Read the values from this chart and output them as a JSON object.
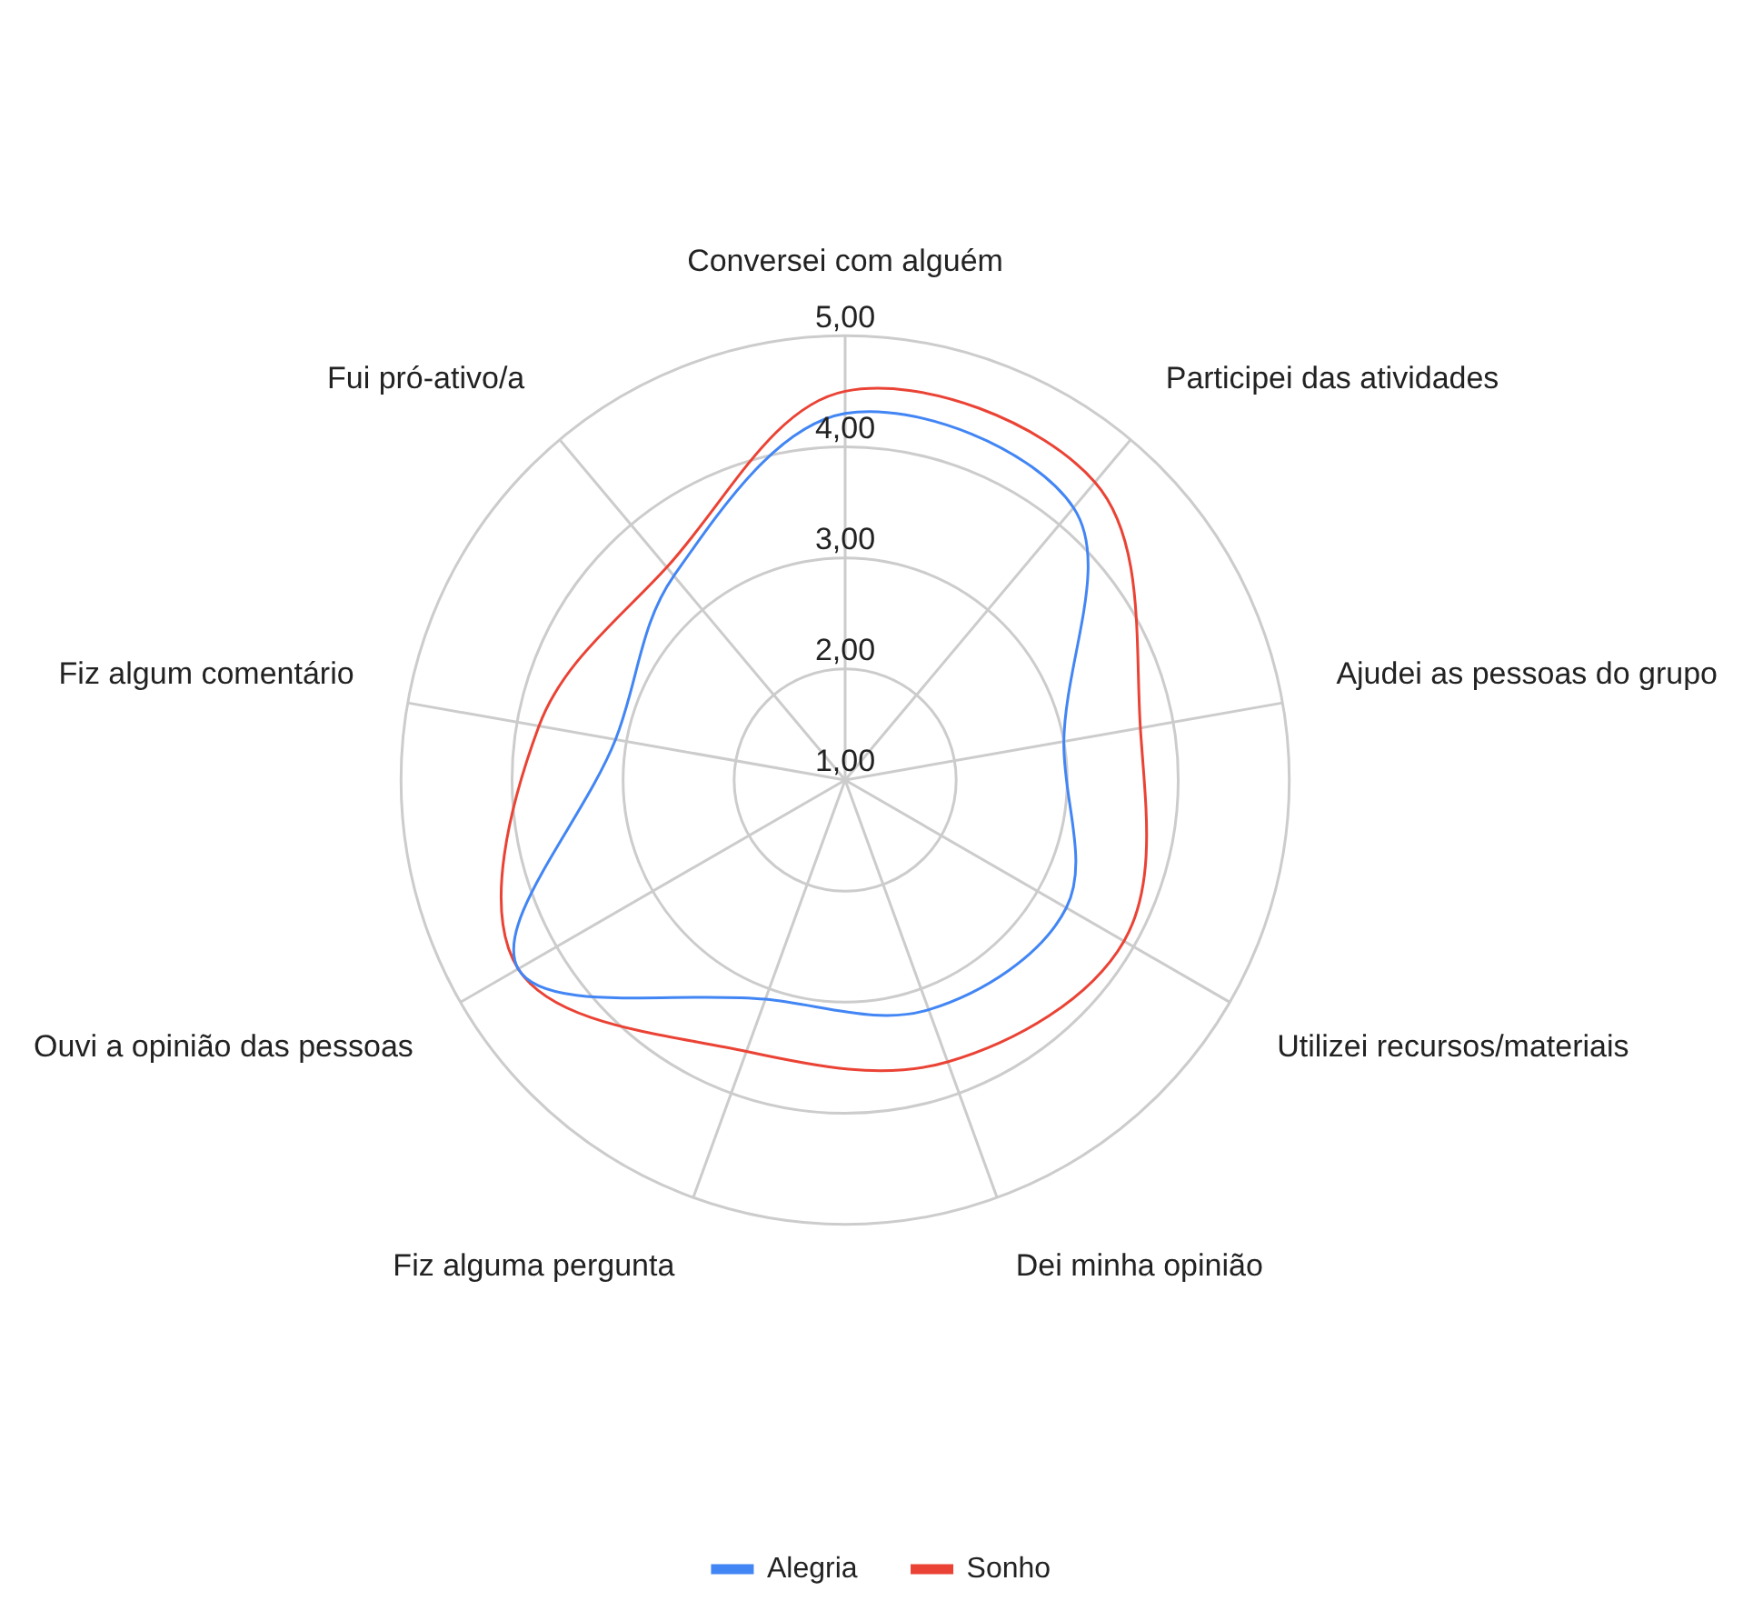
{
  "chart_data": {
    "type": "radar",
    "categories": [
      "Conversei com alguém",
      "Participei das atividades",
      "Ajudei as pessoas do grupo",
      "Utilizei recursos/materiais",
      "Dei minha opinião",
      "Fiz alguma pergunta",
      "Ouvi a opinião das pessoas",
      "Fiz algum comentário",
      "Fui pró-ativo/a"
    ],
    "series": [
      {
        "name": "Alegria",
        "color": "#4285f4",
        "values": [
          4.3,
          4.2,
          3.0,
          3.3,
          3.2,
          3.1,
          4.4,
          3.1,
          3.4
        ]
      },
      {
        "name": "Sonho",
        "color": "#ea4335",
        "values": [
          4.5,
          4.5,
          3.7,
          3.9,
          3.7,
          3.6,
          4.4,
          3.8,
          3.5
        ]
      }
    ],
    "ylim": [
      1,
      5
    ],
    "yticks": [
      {
        "value": 1,
        "label": "1,00"
      },
      {
        "value": 2,
        "label": "2,00"
      },
      {
        "value": 3,
        "label": "3,00"
      },
      {
        "value": 4,
        "label": "4,00"
      },
      {
        "value": 5,
        "label": "5,00"
      }
    ],
    "grid": true,
    "legend": "bottom",
    "marker": "none"
  }
}
